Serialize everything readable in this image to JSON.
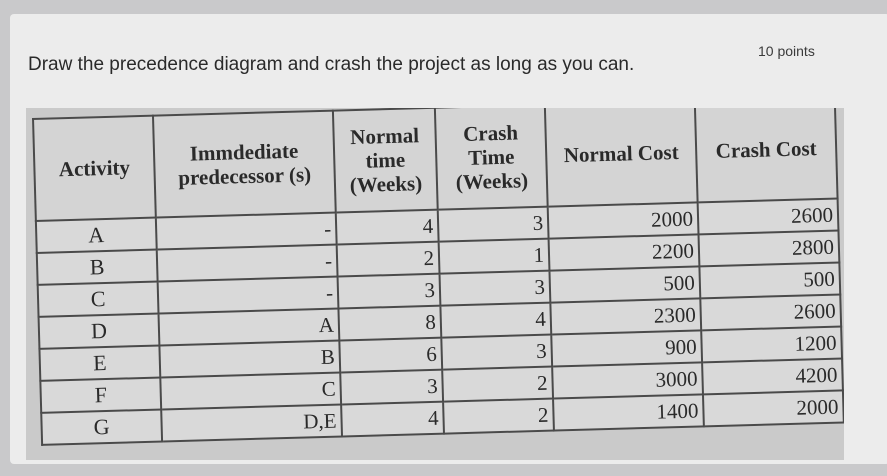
{
  "question": {
    "text": "Draw the precedence diagram and crash the project as long as you can.",
    "points": "10 points"
  },
  "table": {
    "headers": {
      "activity": "Activity",
      "predecessor": "Immdediate predecessor (s)",
      "normal_time": "Normal time (Weeks)",
      "crash_time": "Crash Time (Weeks)",
      "normal_cost": "Normal Cost",
      "crash_cost": "Crash Cost"
    },
    "rows": [
      {
        "activity": "A",
        "pred": "-",
        "normal": "4",
        "crash": "3",
        "ncost": "2000",
        "ccost": "2600"
      },
      {
        "activity": "B",
        "pred": "-",
        "normal": "2",
        "crash": "1",
        "ncost": "2200",
        "ccost": "2800"
      },
      {
        "activity": "C",
        "pred": "-",
        "normal": "3",
        "crash": "3",
        "ncost": "500",
        "ccost": "500"
      },
      {
        "activity": "D",
        "pred": "A",
        "normal": "8",
        "crash": "4",
        "ncost": "2300",
        "ccost": "2600"
      },
      {
        "activity": "E",
        "pred": "B",
        "normal": "6",
        "crash": "3",
        "ncost": "900",
        "ccost": "1200"
      },
      {
        "activity": "F",
        "pred": "C",
        "normal": "3",
        "crash": "2",
        "ncost": "3000",
        "ccost": "4200"
      },
      {
        "activity": "G",
        "pred": "D,E",
        "normal": "4",
        "crash": "2",
        "ncost": "1400",
        "ccost": "2000"
      }
    ]
  }
}
